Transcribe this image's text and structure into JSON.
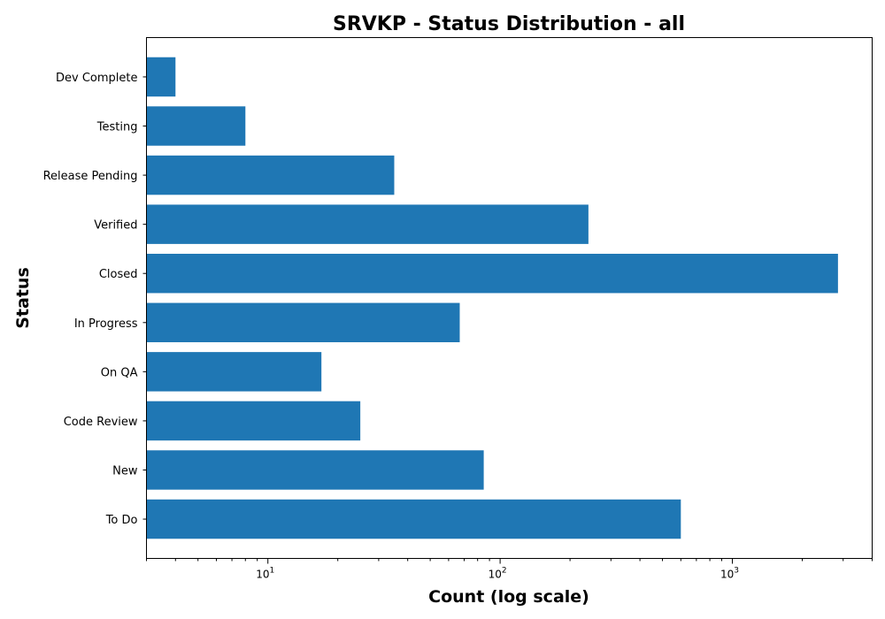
{
  "chart_data": {
    "type": "bar",
    "orientation": "horizontal",
    "title": "SRVKP - Status Distribution - all",
    "xlabel": "Count (log scale)",
    "ylabel": "Status",
    "x_scale": "log",
    "xlim": [
      3,
      4000
    ],
    "x_ticks": [
      {
        "value": 10,
        "base": "10",
        "exp": "1"
      },
      {
        "value": 100,
        "base": "10",
        "exp": "2"
      },
      {
        "value": 1000,
        "base": "10",
        "exp": "3"
      }
    ],
    "categories": [
      "To Do",
      "New",
      "Code Review",
      "On QA",
      "In Progress",
      "Closed",
      "Verified",
      "Release Pending",
      "Testing",
      "Dev Complete"
    ],
    "values": [
      600,
      85,
      25,
      17,
      67,
      2850,
      240,
      35,
      8,
      4
    ],
    "bar_color": "#1f77b4",
    "grid": false,
    "legend": "none"
  }
}
